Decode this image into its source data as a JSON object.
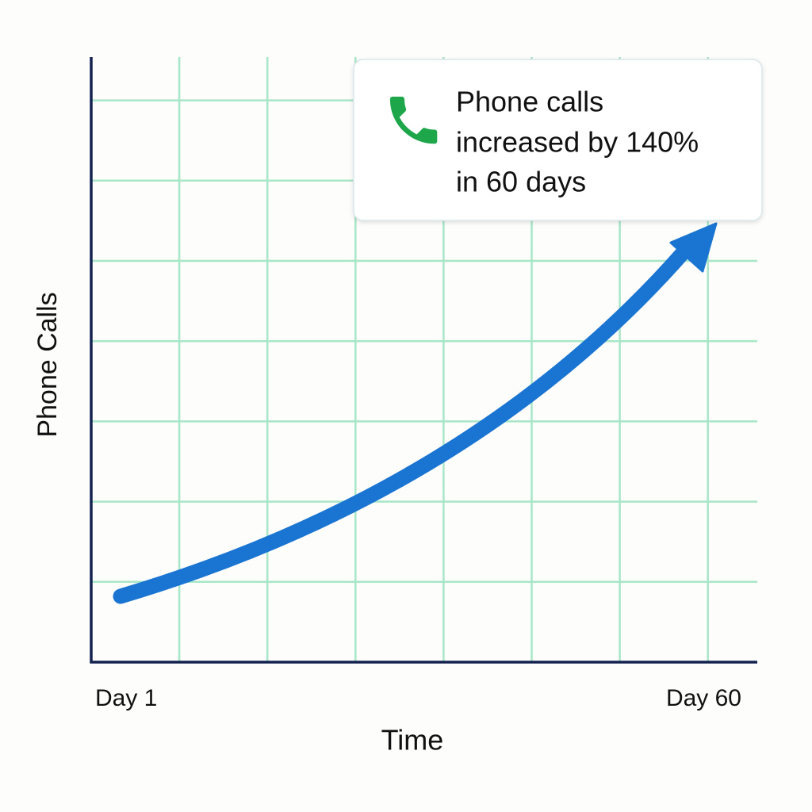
{
  "chart_data": {
    "type": "line",
    "xlabel": "Time",
    "ylabel": "Phone Calls",
    "categories": [
      "Day 1",
      "Day 60"
    ],
    "annotation": [
      "Phone calls",
      "increased by 140%",
      "in 60 days"
    ],
    "color": "#1a74d2",
    "grid": true,
    "grid_color": "#a8e6c8",
    "axis_color": "#13224f",
    "icon_color": "#1ea64b"
  }
}
